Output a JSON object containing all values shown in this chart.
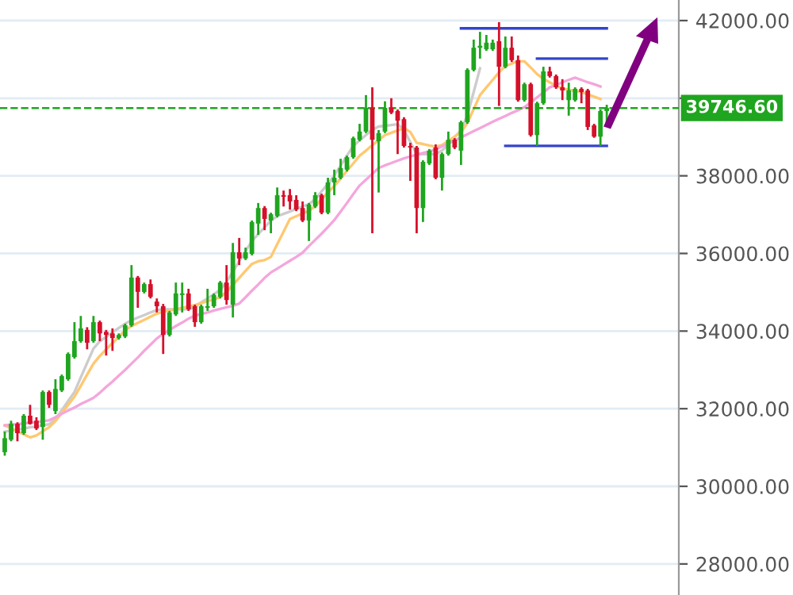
{
  "chart_data": {
    "type": "candlestick",
    "categories": [
      null,
      null,
      null,
      null,
      null,
      null,
      null,
      null,
      null,
      null,
      null,
      null,
      null,
      null,
      null,
      null,
      null,
      null,
      null,
      null,
      null,
      null,
      null,
      null,
      null,
      null,
      null,
      null,
      null,
      null,
      null,
      null,
      null,
      null,
      null,
      null,
      null,
      null,
      null,
      null,
      null,
      null,
      null,
      null,
      null,
      null,
      null,
      null,
      null,
      null,
      null,
      null,
      null,
      null,
      null,
      null,
      null,
      null,
      null,
      null,
      null,
      null,
      null,
      null,
      null,
      null,
      null,
      null,
      null,
      null,
      null,
      null,
      null,
      null,
      null,
      null,
      null,
      null,
      null,
      null,
      null,
      null,
      null,
      null,
      null,
      null,
      null,
      null,
      null,
      null,
      null,
      null,
      null,
      null,
      null,
      null
    ],
    "ohlc": [
      [
        30880,
        31410,
        30790,
        31240
      ],
      [
        31200,
        31690,
        31160,
        31610
      ],
      [
        31610,
        31650,
        31160,
        31370
      ],
      [
        31370,
        31860,
        31330,
        31820
      ],
      [
        31820,
        32100,
        31590,
        31610
      ],
      [
        31690,
        31780,
        31450,
        31490
      ],
      [
        31530,
        32470,
        31200,
        32430
      ],
      [
        32430,
        32470,
        32020,
        32100
      ],
      [
        31940,
        32760,
        31860,
        32510
      ],
      [
        32470,
        32880,
        32430,
        32840
      ],
      [
        32760,
        33450,
        32720,
        33410
      ],
      [
        33330,
        34230,
        33290,
        33740
      ],
      [
        33740,
        34390,
        33700,
        34070
      ],
      [
        34030,
        34100,
        33530,
        33700
      ],
      [
        33740,
        34390,
        33700,
        34230
      ],
      [
        34230,
        34270,
        33740,
        33940
      ],
      [
        33980,
        34030,
        33370,
        33900
      ],
      [
        33940,
        34070,
        33490,
        33820
      ],
      [
        33820,
        33940,
        33780,
        33900
      ],
      [
        33860,
        34190,
        33820,
        34150
      ],
      [
        34150,
        35700,
        34110,
        35380
      ],
      [
        35380,
        35420,
        34600,
        35010
      ],
      [
        35010,
        35250,
        34970,
        35210
      ],
      [
        35210,
        35330,
        34840,
        34880
      ],
      [
        34760,
        34840,
        34480,
        34640
      ],
      [
        34640,
        34700,
        33410,
        33900
      ],
      [
        33900,
        34520,
        33860,
        34480
      ],
      [
        34430,
        35250,
        34390,
        34970
      ],
      [
        34930,
        35250,
        34480,
        34970
      ],
      [
        34970,
        35090,
        34520,
        34560
      ],
      [
        34640,
        34680,
        34110,
        34230
      ],
      [
        34230,
        34680,
        34190,
        34640
      ],
      [
        34600,
        35090,
        34520,
        34640
      ],
      [
        34640,
        34970,
        34600,
        34930
      ],
      [
        34880,
        35290,
        34840,
        35250
      ],
      [
        35250,
        35700,
        34680,
        34800
      ],
      [
        34680,
        36270,
        34350,
        36030
      ],
      [
        36030,
        36400,
        35700,
        35870
      ],
      [
        35870,
        36150,
        35830,
        36030
      ],
      [
        35990,
        36850,
        35950,
        36810
      ],
      [
        36770,
        37300,
        36480,
        37170
      ],
      [
        37170,
        37220,
        36600,
        36890
      ],
      [
        36850,
        37050,
        36520,
        37010
      ],
      [
        36970,
        37700,
        36930,
        37500
      ],
      [
        37500,
        37620,
        37210,
        37460
      ],
      [
        37500,
        37660,
        37130,
        37340
      ],
      [
        37380,
        37500,
        37090,
        37130
      ],
      [
        37170,
        37340,
        36810,
        36850
      ],
      [
        36850,
        37300,
        36320,
        37260
      ],
      [
        37210,
        37580,
        37170,
        37500
      ],
      [
        37500,
        37540,
        37010,
        37050
      ],
      [
        37050,
        37950,
        37010,
        37830
      ],
      [
        37830,
        38160,
        37500,
        37950
      ],
      [
        37950,
        38440,
        37910,
        38200
      ],
      [
        38160,
        38520,
        38110,
        38480
      ],
      [
        38480,
        39010,
        38440,
        38970
      ],
      [
        38930,
        39340,
        38890,
        39140
      ],
      [
        39140,
        40080,
        39100,
        39750
      ],
      [
        39750,
        40280,
        36520,
        38930
      ],
      [
        38890,
        39180,
        37570,
        39100
      ],
      [
        39140,
        39920,
        39100,
        39750
      ],
      [
        39750,
        40000,
        39590,
        39630
      ],
      [
        39670,
        39710,
        38560,
        39420
      ],
      [
        39460,
        39510,
        38730,
        38770
      ],
      [
        38770,
        38850,
        37870,
        38730
      ],
      [
        38730,
        38770,
        36520,
        37170
      ],
      [
        37170,
        38400,
        36810,
        38360
      ],
      [
        38320,
        38690,
        38280,
        38650
      ],
      [
        38730,
        38810,
        37910,
        37950
      ],
      [
        37950,
        38600,
        37620,
        38560
      ],
      [
        38560,
        39140,
        38520,
        38930
      ],
      [
        38930,
        38970,
        38690,
        38730
      ],
      [
        38650,
        39420,
        38280,
        39380
      ],
      [
        39380,
        40770,
        39340,
        40730
      ],
      [
        40730,
        41510,
        40690,
        41300
      ],
      [
        41300,
        41710,
        41020,
        41350
      ],
      [
        41260,
        41630,
        41220,
        41430
      ],
      [
        41260,
        41510,
        41220,
        41430
      ],
      [
        41470,
        41960,
        39800,
        40810
      ],
      [
        40810,
        41590,
        40770,
        41300
      ],
      [
        41300,
        41590,
        40930,
        40980
      ],
      [
        40980,
        41100,
        39910,
        39950
      ],
      [
        39950,
        40400,
        39910,
        40360
      ],
      [
        40360,
        40400,
        39010,
        39050
      ],
      [
        39050,
        39910,
        38770,
        39870
      ],
      [
        39870,
        40810,
        39830,
        40690
      ],
      [
        40690,
        40810,
        40530,
        40570
      ],
      [
        40570,
        40610,
        40240,
        40280
      ],
      [
        40280,
        40490,
        39950,
        40200
      ],
      [
        39950,
        40400,
        39550,
        40200
      ],
      [
        39950,
        40280,
        39910,
        40240
      ],
      [
        40240,
        40280,
        39870,
        40160
      ],
      [
        40200,
        40240,
        39180,
        39260
      ],
      [
        39300,
        39340,
        38980,
        39010
      ],
      [
        39010,
        39710,
        38770,
        39670
      ],
      [
        39670,
        39830,
        39340,
        39746.6
      ]
    ],
    "colors": [
      "#1fa51f",
      "#1fa51f",
      "#d5102a",
      "#1fa51f",
      "#d5102a",
      "#d5102a",
      "#1fa51f",
      "#d5102a",
      "#1fa51f",
      "#1fa51f",
      "#1fa51f",
      "#1fa51f",
      "#1fa51f",
      "#d5102a",
      "#1fa51f",
      "#d5102a",
      "#d5102a",
      "#d5102a",
      "#1fa51f",
      "#1fa51f",
      "#1fa51f",
      "#d5102a",
      "#1fa51f",
      "#d5102a",
      "#d5102a",
      "#d5102a",
      "#1fa51f",
      "#1fa51f",
      "#1fa51f",
      "#d5102a",
      "#d5102a",
      "#1fa51f",
      "#1fa51f",
      "#1fa51f",
      "#1fa51f",
      "#d5102a",
      "#1fa51f",
      "#d5102a",
      "#1fa51f",
      "#1fa51f",
      "#1fa51f",
      "#d5102a",
      "#1fa51f",
      "#1fa51f",
      "#d5102a",
      "#d5102a",
      "#d5102a",
      "#d5102a",
      "#1fa51f",
      "#1fa51f",
      "#d5102a",
      "#1fa51f",
      "#1fa51f",
      "#1fa51f",
      "#1fa51f",
      "#1fa51f",
      "#1fa51f",
      "#1fa51f",
      "#d5102a",
      "#1fa51f",
      "#1fa51f",
      "#d5102a",
      "#d5102a",
      "#d5102a",
      "#d5102a",
      "#d5102a",
      "#1fa51f",
      "#1fa51f",
      "#d5102a",
      "#1fa51f",
      "#1fa51f",
      "#d5102a",
      "#1fa51f",
      "#1fa51f",
      "#1fa51f",
      "#1fa51f",
      "#1fa51f",
      "#1fa51f",
      "#d5102a",
      "#1fa51f",
      "#d5102a",
      "#d5102a",
      "#1fa51f",
      "#d5102a",
      "#1fa51f",
      "#1fa51f",
      "#d5102a",
      "#d5102a",
      "#d5102a",
      "#1fa51f",
      "#1fa51f",
      "#d5102a",
      "#d5102a",
      "#d5102a",
      "#1fa51f",
      "#1fa51f"
    ],
    "series": [
      {
        "type": "line",
        "color": "#cccccc",
        "values": [
          31410,
          31440,
          31460,
          31490,
          31520,
          31540,
          31570,
          31600,
          31730,
          31960,
          32200,
          32430,
          32810,
          33180,
          33550,
          33740,
          33850,
          33970,
          34080,
          34190,
          34280,
          34350,
          34410,
          34480,
          34540,
          34560,
          34560,
          34560,
          34560,
          34560,
          34630,
          34740,
          34840,
          34950,
          35060,
          35270,
          35530,
          35800,
          36060,
          36320,
          36500,
          36670,
          36850,
          36960,
          37020,
          37080,
          37150,
          37210,
          37270,
          37400,
          37600,
          37790,
          38010,
          38260,
          38520,
          38770,
          38910,
          39050,
          39190,
          39270,
          39290,
          39310,
          39330,
          39180,
          38870,
          38560,
          38560,
          38560,
          38560,
          38650,
          38820,
          39000,
          39170,
          39560,
          40160,
          40770,
          null,
          null,
          null,
          null,
          null,
          null,
          null,
          null,
          null,
          null,
          null,
          null,
          null,
          null,
          null,
          null,
          null,
          null,
          null,
          null
        ]
      },
      {
        "type": "line",
        "color": "#ffc870",
        "values": [
          31570,
          31490,
          31420,
          31340,
          31260,
          31310,
          31420,
          31520,
          31680,
          31890,
          32100,
          32310,
          32590,
          32880,
          33160,
          33360,
          33530,
          33690,
          33850,
          34020,
          34130,
          34210,
          34290,
          34370,
          34450,
          34500,
          34530,
          34560,
          34600,
          34630,
          34670,
          34720,
          34770,
          34820,
          34870,
          35010,
          35190,
          35370,
          35550,
          35730,
          35800,
          35830,
          35910,
          36240,
          36560,
          36890,
          36960,
          37030,
          37100,
          37220,
          37400,
          37570,
          37740,
          37930,
          38130,
          38320,
          38520,
          38650,
          38790,
          38920,
          39050,
          39110,
          39170,
          39230,
          39130,
          38850,
          38820,
          38780,
          38750,
          38790,
          38900,
          39010,
          39120,
          39360,
          39720,
          40080,
          40280,
          40470,
          40670,
          40830,
          40890,
          40960,
          40950,
          40790,
          40620,
          40500,
          40410,
          40320,
          40250,
          40220,
          40180,
          40160,
          40100,
          40040,
          39980,
          null
        ]
      },
      {
        "type": "line",
        "color": "#f4a6dc",
        "values": [
          31570,
          31590,
          31600,
          31620,
          31640,
          31660,
          31680,
          31700,
          31780,
          31870,
          31950,
          32030,
          32120,
          32200,
          32280,
          32410,
          32560,
          32700,
          32850,
          33000,
          33160,
          33320,
          33490,
          33650,
          33810,
          33930,
          34030,
          34130,
          34220,
          34320,
          34400,
          34440,
          34480,
          34530,
          34570,
          34610,
          34650,
          34710,
          34870,
          35040,
          35200,
          35370,
          35510,
          35610,
          35710,
          35810,
          35910,
          36020,
          36190,
          36350,
          36510,
          36680,
          36860,
          37080,
          37300,
          37530,
          37750,
          37900,
          38050,
          38200,
          38270,
          38330,
          38390,
          38450,
          38500,
          38540,
          38590,
          38630,
          38680,
          38760,
          38830,
          38910,
          38990,
          39070,
          39150,
          39230,
          39310,
          39390,
          39470,
          39540,
          39620,
          39690,
          39770,
          39890,
          40020,
          40150,
          40280,
          40340,
          40410,
          40470,
          40530,
          40470,
          40410,
          40360,
          40300,
          null
        ]
      },
      {
        "type": "line",
        "color": "#3344cc",
        "values": [
          null,
          null,
          null,
          null,
          null,
          null,
          null,
          null,
          null,
          null,
          null,
          null,
          null,
          null,
          null,
          null,
          null,
          null,
          null,
          null,
          null,
          null,
          null,
          null,
          null,
          null,
          null,
          null,
          null,
          null,
          null,
          null,
          null,
          null,
          null,
          null,
          null,
          null,
          null,
          null,
          null,
          null,
          null,
          null,
          null,
          null,
          null,
          null,
          null,
          null,
          null,
          null,
          null,
          null,
          null,
          null,
          null,
          null,
          null,
          null,
          null,
          null,
          null,
          null,
          null,
          null,
          null,
          null,
          null,
          null,
          null,
          null,
          41800,
          41800,
          41800,
          41800,
          41800,
          41800,
          41800,
          41800,
          41800,
          41800,
          41800,
          41800,
          41800,
          41800,
          41800,
          41800,
          41800,
          41800,
          41800,
          41800,
          41800,
          41800,
          41800,
          41800
        ]
      },
      {
        "type": "line",
        "color": "#3344cc",
        "values": [
          null,
          null,
          null,
          null,
          null,
          null,
          null,
          null,
          null,
          null,
          null,
          null,
          null,
          null,
          null,
          null,
          null,
          null,
          null,
          null,
          null,
          null,
          null,
          null,
          null,
          null,
          null,
          null,
          null,
          null,
          null,
          null,
          null,
          null,
          null,
          null,
          null,
          null,
          null,
          null,
          null,
          null,
          null,
          null,
          null,
          null,
          null,
          null,
          null,
          null,
          null,
          null,
          null,
          null,
          null,
          null,
          null,
          null,
          null,
          null,
          null,
          null,
          null,
          null,
          null,
          null,
          null,
          null,
          null,
          null,
          null,
          null,
          null,
          null,
          null,
          null,
          null,
          null,
          null,
          null,
          null,
          null,
          null,
          null,
          41020,
          41020,
          41020,
          41020,
          41020,
          41020,
          41020,
          41020,
          41020,
          41020,
          41020,
          41020
        ]
      },
      {
        "type": "line",
        "color": "#3344cc",
        "values": [
          null,
          null,
          null,
          null,
          null,
          null,
          null,
          null,
          null,
          null,
          null,
          null,
          null,
          null,
          null,
          null,
          null,
          null,
          null,
          null,
          null,
          null,
          null,
          null,
          null,
          null,
          null,
          null,
          null,
          null,
          null,
          null,
          null,
          null,
          null,
          null,
          null,
          null,
          null,
          null,
          null,
          null,
          null,
          null,
          null,
          null,
          null,
          null,
          null,
          null,
          null,
          null,
          null,
          null,
          null,
          null,
          null,
          null,
          null,
          null,
          null,
          null,
          null,
          null,
          null,
          null,
          null,
          null,
          null,
          null,
          null,
          null,
          null,
          null,
          null,
          null,
          null,
          null,
          null,
          38770,
          38770,
          38770,
          38770,
          38770,
          38770,
          38770,
          38770,
          38770,
          38770,
          38770,
          38770,
          38770,
          38770,
          38770,
          38770,
          38770
        ]
      }
    ],
    "ref_lines": [
      {
        "axis": "y",
        "value": 39746.6,
        "label": "39746.60",
        "color": "#1fa51f",
        "line_style": "dashed"
      }
    ],
    "ylim": [
      27200,
      42530
    ],
    "yticks": [
      {
        "value": 28000,
        "label": "28000.00"
      },
      {
        "value": 30000,
        "label": "30000.00"
      },
      {
        "value": 32000,
        "label": "32000.00"
      },
      {
        "value": 34000,
        "label": "34000.00"
      },
      {
        "value": 36000,
        "label": "36000.00"
      },
      {
        "value": 38000,
        "label": "38000.00"
      },
      {
        "value": 40000,
        "label": null
      },
      {
        "value": 42000,
        "label": "42000.00"
      }
    ],
    "grid": "y",
    "tick_labels": "y",
    "legend": false
  }
}
